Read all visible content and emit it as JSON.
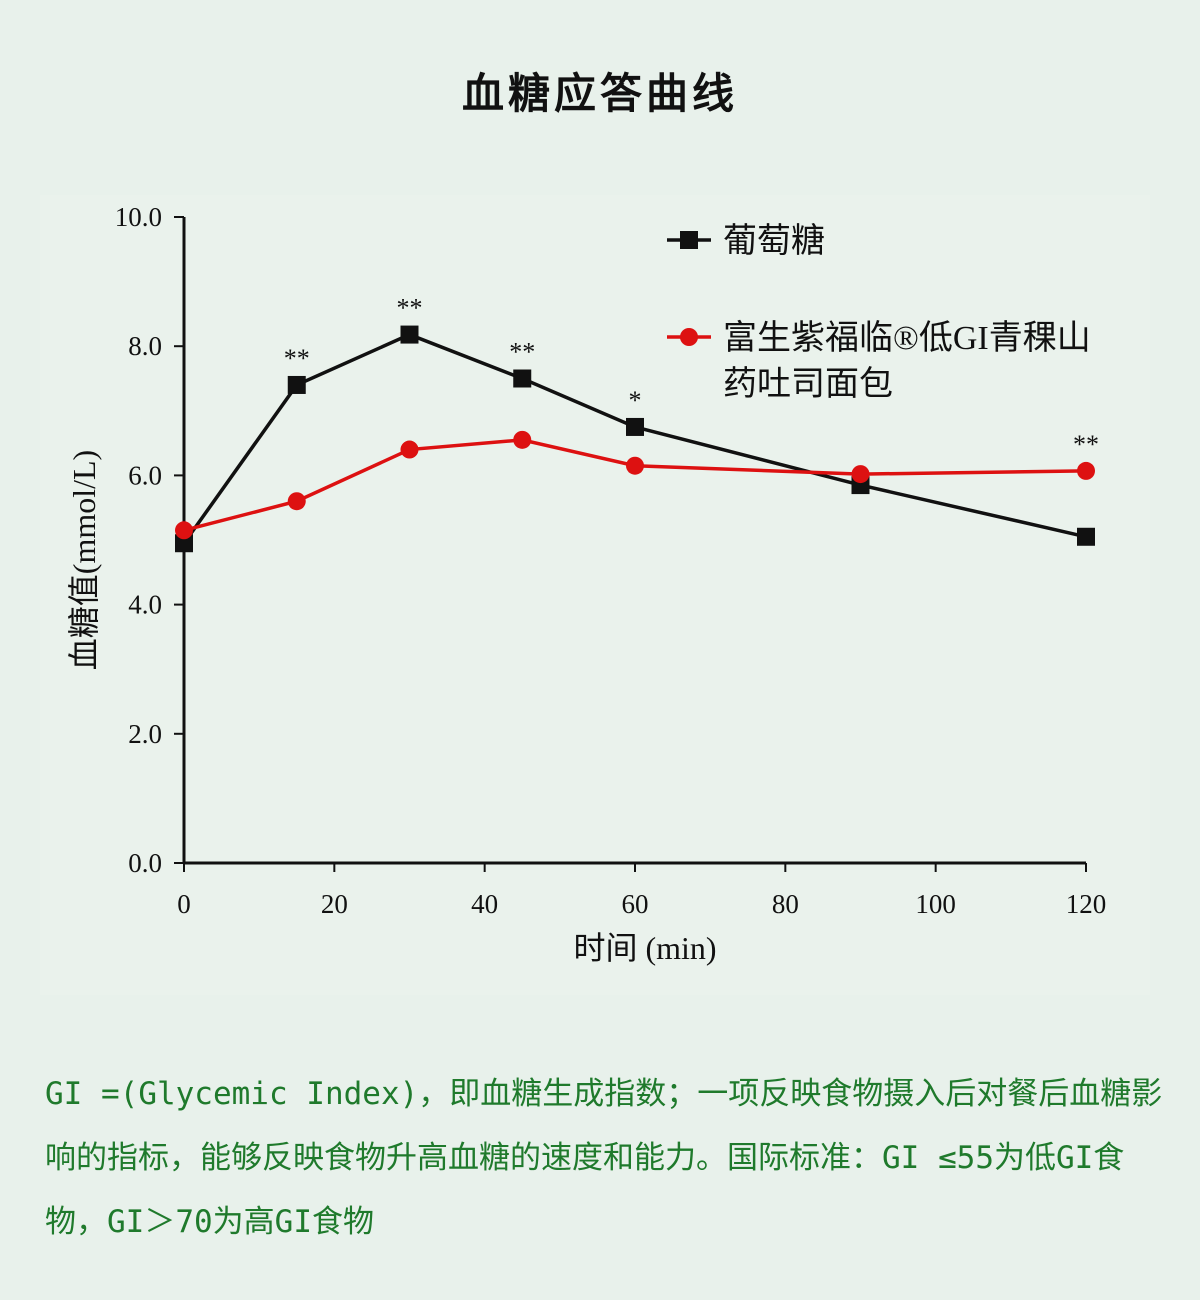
{
  "page": {
    "title": "血糖应答曲线",
    "note": "GI =(Glycemic Index)，即血糖生成指数；一项反映食物摄入后对餐后血糖影响的指标，能够反映食物升高血糖的速度和能力。国际标准：GI ≤55为低GI食物，GI＞70为高GI食物"
  },
  "chart_data": {
    "type": "line",
    "title": "血糖应答曲线",
    "xlabel": "时间 (min)",
    "ylabel": "血糖值(mmol/L)",
    "xlim": [
      0,
      120
    ],
    "ylim": [
      0,
      10
    ],
    "xticks": [
      0,
      20,
      40,
      60,
      80,
      100,
      120
    ],
    "yticks": [
      "0.0",
      "2.0",
      "4.0",
      "6.0",
      "8.0",
      "10.0"
    ],
    "grid": false,
    "legend_position": "top-right",
    "series": [
      {
        "name": "葡萄糖",
        "color": "#111111",
        "marker": "square",
        "x": [
          0,
          15,
          30,
          45,
          60,
          90,
          120
        ],
        "y": [
          4.95,
          7.4,
          8.18,
          7.5,
          6.75,
          5.85,
          5.05
        ]
      },
      {
        "name": "富生紫福临®低GI青稞山药吐司面包",
        "color": "#dd1111",
        "marker": "circle",
        "x": [
          0,
          15,
          30,
          45,
          60,
          90,
          120
        ],
        "y": [
          5.15,
          5.6,
          6.4,
          6.55,
          6.15,
          6.02,
          6.07
        ]
      }
    ],
    "annotations": [
      {
        "x": 15,
        "y": 7.4,
        "text": "**"
      },
      {
        "x": 30,
        "y": 8.18,
        "text": "**"
      },
      {
        "x": 45,
        "y": 7.5,
        "text": "**"
      },
      {
        "x": 60,
        "y": 6.75,
        "text": "*"
      },
      {
        "x": 120,
        "y": 6.07,
        "text": "**"
      }
    ]
  }
}
